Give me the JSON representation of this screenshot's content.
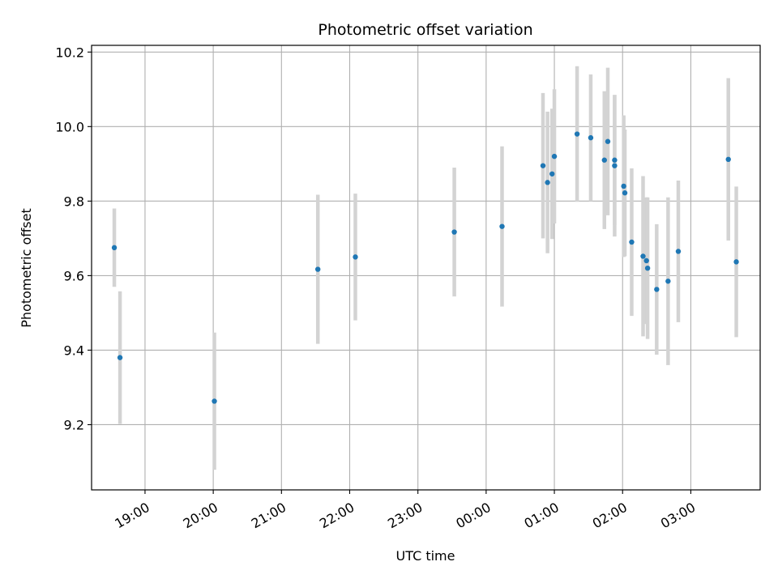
{
  "chart_data": {
    "type": "scatter",
    "title": "Photometric offset variation",
    "xlabel": "UTC time",
    "ylabel": "Photometric offset",
    "grid": true,
    "colors": {
      "point": "#1f77b4",
      "errorbar": "#d3d3d3",
      "grid": "#b0b0b0"
    },
    "x_ticks": [
      "19:00",
      "20:00",
      "21:00",
      "22:00",
      "23:00",
      "00:00",
      "01:00",
      "02:00",
      "03:00"
    ],
    "y_ticks": [
      "9.2",
      "9.4",
      "9.6",
      "9.8",
      "10.0",
      "10.2"
    ],
    "xlim": [
      "18:13",
      "04:01"
    ],
    "ylim": [
      9.025,
      10.218
    ],
    "points": [
      {
        "x": "18:33",
        "y": 9.675,
        "err": 0.105
      },
      {
        "x": "18:38",
        "y": 9.38,
        "err": 0.178
      },
      {
        "x": "20:01",
        "y": 9.263,
        "err": 0.184
      },
      {
        "x": "21:32",
        "y": 9.617,
        "err": 0.2
      },
      {
        "x": "22:05",
        "y": 9.65,
        "err": 0.17
      },
      {
        "x": "23:32",
        "y": 9.717,
        "err": 0.173
      },
      {
        "x": "00:14",
        "y": 9.732,
        "err": 0.215
      },
      {
        "x": "00:50",
        "y": 9.895,
        "err": 0.195
      },
      {
        "x": "00:54",
        "y": 9.85,
        "err": 0.19
      },
      {
        "x": "00:58",
        "y": 9.873,
        "err": 0.175
      },
      {
        "x": "01:00",
        "y": 9.92,
        "err": 0.18
      },
      {
        "x": "01:20",
        "y": 9.98,
        "err": 0.182
      },
      {
        "x": "01:32",
        "y": 9.97,
        "err": 0.17
      },
      {
        "x": "01:44",
        "y": 9.91,
        "err": 0.185
      },
      {
        "x": "01:47",
        "y": 9.96,
        "err": 0.198
      },
      {
        "x": "01:53",
        "y": 9.895,
        "err": 0.19
      },
      {
        "x": "01:53",
        "y": 9.91,
        "err": 0.175
      },
      {
        "x": "02:01",
        "y": 9.84,
        "err": 0.19
      },
      {
        "x": "02:02",
        "y": 9.822,
        "err": 0.17
      },
      {
        "x": "02:08",
        "y": 9.69,
        "err": 0.198
      },
      {
        "x": "02:18",
        "y": 9.652,
        "err": 0.215
      },
      {
        "x": "02:21",
        "y": 9.64,
        "err": 0.17
      },
      {
        "x": "02:22",
        "y": 9.62,
        "err": 0.19
      },
      {
        "x": "02:30",
        "y": 9.563,
        "err": 0.175
      },
      {
        "x": "02:40",
        "y": 9.585,
        "err": 0.225
      },
      {
        "x": "02:49",
        "y": 9.665,
        "err": 0.19
      },
      {
        "x": "03:33",
        "y": 9.912,
        "err": 0.218
      },
      {
        "x": "03:40",
        "y": 9.637,
        "err": 0.202
      }
    ]
  }
}
